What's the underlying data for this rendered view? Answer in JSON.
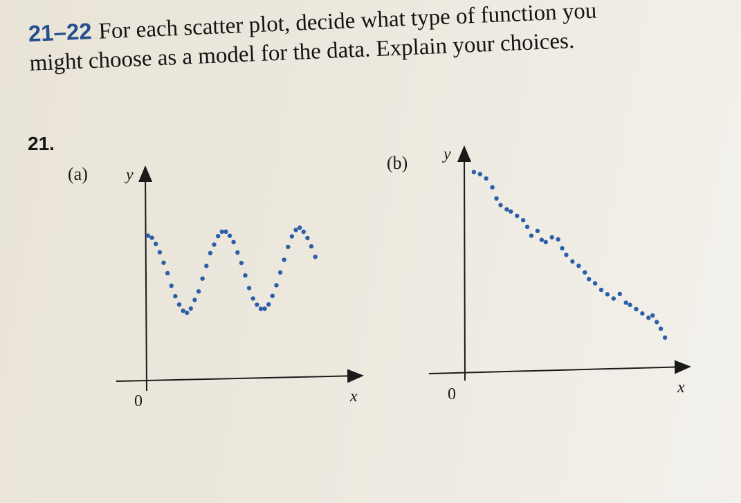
{
  "problem": {
    "number": "21–22",
    "line1": "For each scatter plot, decide what type of function you",
    "line2": "might choose as a model for the data. Explain your choices."
  },
  "exercise": {
    "number": "21."
  },
  "accent_color": "#244f8f",
  "dot_color": "#2b5ea8",
  "plots": [
    {
      "part_label": "(a)",
      "y_label": "y",
      "x_label": "x",
      "origin_label": "0"
    },
    {
      "part_label": "(b)",
      "y_label": "y",
      "x_label": "x",
      "origin_label": "0"
    }
  ],
  "chart_data": [
    {
      "type": "scatter",
      "title": "",
      "xlabel": "x",
      "ylabel": "y",
      "xlim": [
        0,
        10
      ],
      "ylim": [
        0,
        10
      ],
      "grid": false,
      "note_shape": "oscillating",
      "points": [
        [
          0.0,
          6.7
        ],
        [
          0.2,
          6.6
        ],
        [
          0.4,
          6.3
        ],
        [
          0.6,
          5.9
        ],
        [
          0.8,
          5.4
        ],
        [
          1.0,
          4.9
        ],
        [
          1.2,
          4.3
        ],
        [
          1.4,
          3.8
        ],
        [
          1.6,
          3.4
        ],
        [
          1.8,
          3.1
        ],
        [
          2.0,
          3.0
        ],
        [
          2.2,
          3.2
        ],
        [
          2.4,
          3.6
        ],
        [
          2.6,
          4.0
        ],
        [
          2.8,
          4.6
        ],
        [
          3.0,
          5.2
        ],
        [
          3.2,
          5.8
        ],
        [
          3.4,
          6.2
        ],
        [
          3.6,
          6.6
        ],
        [
          3.8,
          6.8
        ],
        [
          4.0,
          6.8
        ],
        [
          4.2,
          6.6
        ],
        [
          4.4,
          6.3
        ],
        [
          4.6,
          5.8
        ],
        [
          4.8,
          5.3
        ],
        [
          5.0,
          4.7
        ],
        [
          5.2,
          4.1
        ],
        [
          5.4,
          3.6
        ],
        [
          5.6,
          3.3
        ],
        [
          5.8,
          3.1
        ],
        [
          6.0,
          3.1
        ],
        [
          6.2,
          3.3
        ],
        [
          6.4,
          3.7
        ],
        [
          6.6,
          4.2
        ],
        [
          6.8,
          4.8
        ],
        [
          7.0,
          5.4
        ],
        [
          7.2,
          6.0
        ],
        [
          7.4,
          6.5
        ],
        [
          7.6,
          6.8
        ],
        [
          7.8,
          6.9
        ],
        [
          8.0,
          6.7
        ],
        [
          8.2,
          6.4
        ],
        [
          8.4,
          6.0
        ],
        [
          8.6,
          5.5
        ]
      ]
    },
    {
      "type": "scatter",
      "title": "",
      "xlabel": "x",
      "ylabel": "y",
      "xlim": [
        0,
        10
      ],
      "ylim": [
        0,
        10
      ],
      "grid": false,
      "note_shape": "decreasing",
      "points": [
        [
          0.4,
          8.8
        ],
        [
          0.7,
          8.7
        ],
        [
          1.0,
          8.5
        ],
        [
          1.3,
          8.1
        ],
        [
          1.5,
          7.6
        ],
        [
          1.7,
          7.3
        ],
        [
          2.0,
          7.1
        ],
        [
          2.2,
          7.0
        ],
        [
          2.5,
          6.8
        ],
        [
          2.8,
          6.6
        ],
        [
          3.0,
          6.3
        ],
        [
          3.2,
          5.9
        ],
        [
          3.5,
          6.1
        ],
        [
          3.7,
          5.7
        ],
        [
          3.9,
          5.6
        ],
        [
          4.2,
          5.8
        ],
        [
          4.5,
          5.7
        ],
        [
          4.7,
          5.3
        ],
        [
          4.9,
          5.0
        ],
        [
          5.2,
          4.7
        ],
        [
          5.5,
          4.5
        ],
        [
          5.8,
          4.2
        ],
        [
          6.0,
          3.9
        ],
        [
          6.3,
          3.7
        ],
        [
          6.6,
          3.4
        ],
        [
          6.9,
          3.2
        ],
        [
          7.2,
          3.0
        ],
        [
          7.5,
          3.2
        ],
        [
          7.8,
          2.8
        ],
        [
          8.0,
          2.7
        ],
        [
          8.3,
          2.5
        ],
        [
          8.6,
          2.3
        ],
        [
          8.9,
          2.1
        ],
        [
          9.1,
          2.2
        ],
        [
          9.3,
          1.9
        ],
        [
          9.5,
          1.6
        ],
        [
          9.7,
          1.2
        ]
      ]
    }
  ]
}
